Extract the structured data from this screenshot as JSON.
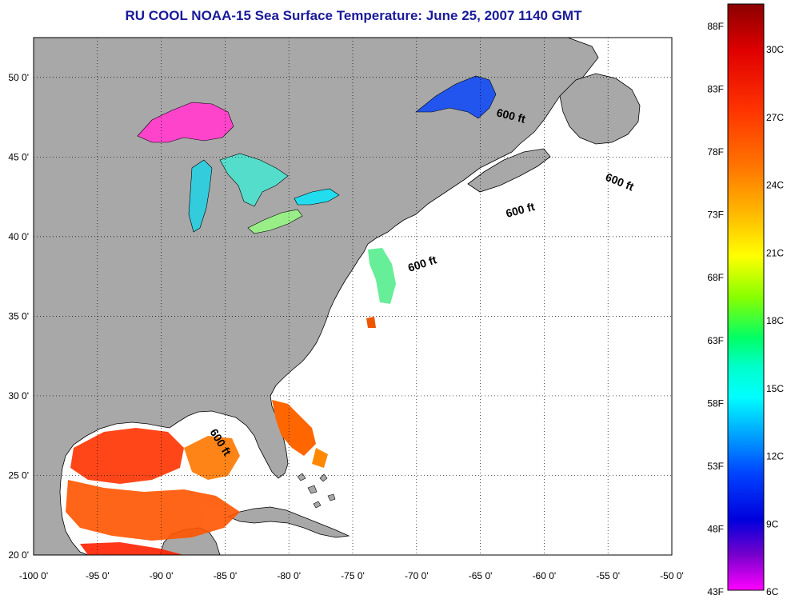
{
  "title": "RU COOL  NOAA-15  Sea Surface Temperature:  June 25, 2007 1140 GMT",
  "map": {
    "lon_range": [
      -100,
      -50
    ],
    "lat_range": [
      20,
      52.5
    ],
    "lon_ticks": [
      "-100 0'",
      "-95 0'",
      "-90 0'",
      "-85 0'",
      "-80 0'",
      "-75 0'",
      "-70 0'",
      "-65 0'",
      "-60 0'",
      "-55 0'",
      "-50 0'"
    ],
    "lat_ticks": [
      "20 0'",
      "25 0'",
      "30 0'",
      "35 0'",
      "40 0'",
      "45 0'",
      "50 0'"
    ],
    "contour_labels": [
      "600 ft",
      "600 ft",
      "600 ft",
      "600 ft",
      "600 ft"
    ],
    "colors": {
      "land": "#a8a8a8",
      "ocean": "#ffffff",
      "coast": "#000000",
      "grid": "#000000"
    }
  },
  "colorbar": {
    "fahrenheit_labels": [
      "88F",
      "83F",
      "78F",
      "73F",
      "68F",
      "63F",
      "58F",
      "53F",
      "48F",
      "43F"
    ],
    "celsius_labels": [
      "30C",
      "27C",
      "24C",
      "21C",
      "18C",
      "15C",
      "12C",
      "9C",
      "6C"
    ],
    "colors_top_to_bottom": [
      "#8b0000",
      "#e00000",
      "#ff3300",
      "#ff7700",
      "#ffbb00",
      "#ffff00",
      "#88ff00",
      "#00ff66",
      "#00ffcc",
      "#00ffff",
      "#00aaff",
      "#0044ff",
      "#0000dd",
      "#7700cc",
      "#ff00ff"
    ]
  }
}
